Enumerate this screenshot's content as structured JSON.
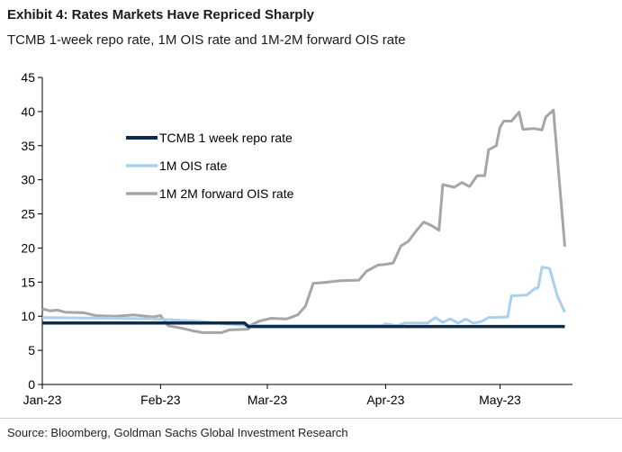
{
  "header": {
    "title": "Exhibit 4: Rates Markets Have Repriced Sharply",
    "subtitle": "TCMB 1-week repo rate, 1M OIS rate and 1M-2M forward OIS rate"
  },
  "footer": {
    "source": "Source: Bloomberg, Goldman Sachs Global Investment Research"
  },
  "chart_data": {
    "type": "line",
    "ylim": [
      0,
      45
    ],
    "yticks": [
      0,
      5,
      10,
      15,
      20,
      25,
      30,
      35,
      40,
      45
    ],
    "xlim": [
      "2023-01-01",
      "2023-05-20"
    ],
    "xticks": [
      {
        "date": "2023-01-01",
        "label": "Jan-23"
      },
      {
        "date": "2023-02-01",
        "label": "Feb-23"
      },
      {
        "date": "2023-03-01",
        "label": "Mar-23"
      },
      {
        "date": "2023-04-01",
        "label": "Apr-23"
      },
      {
        "date": "2023-05-01",
        "label": "May-23"
      }
    ],
    "grid": false,
    "legend_position": "top-left",
    "series": [
      {
        "name": "TCMB 1 week repo rate",
        "color": "#0d2b4a",
        "width": 3.5,
        "points": [
          [
            "2023-01-01",
            9.0
          ],
          [
            "2023-02-23",
            9.0
          ],
          [
            "2023-02-24",
            8.5
          ],
          [
            "2023-05-18",
            8.5
          ]
        ]
      },
      {
        "name": "1M OIS rate",
        "color": "#a9d0ec",
        "width": 3,
        "points": [
          [
            "2023-01-01",
            9.8
          ],
          [
            "2023-01-20",
            9.7
          ],
          [
            "2023-01-30",
            9.6
          ],
          [
            "2023-02-10",
            9.3
          ],
          [
            "2023-02-18",
            8.9
          ],
          [
            "2023-02-25",
            8.6
          ],
          [
            "2023-03-15",
            8.6
          ],
          [
            "2023-03-31",
            8.6
          ],
          [
            "2023-04-01",
            8.9
          ],
          [
            "2023-04-04",
            8.6
          ],
          [
            "2023-04-06",
            9.0
          ],
          [
            "2023-04-12",
            9.0
          ],
          [
            "2023-04-14",
            9.8
          ],
          [
            "2023-04-16",
            9.1
          ],
          [
            "2023-04-18",
            9.6
          ],
          [
            "2023-04-20",
            9.0
          ],
          [
            "2023-04-22",
            9.6
          ],
          [
            "2023-04-24",
            9.0
          ],
          [
            "2023-04-26",
            9.2
          ],
          [
            "2023-04-28",
            9.8
          ],
          [
            "2023-05-03",
            9.9
          ],
          [
            "2023-05-04",
            13.0
          ],
          [
            "2023-05-08",
            13.1
          ],
          [
            "2023-05-10",
            14.0
          ],
          [
            "2023-05-11",
            14.2
          ],
          [
            "2023-05-12",
            17.2
          ],
          [
            "2023-05-14",
            17.0
          ],
          [
            "2023-05-16",
            13.0
          ],
          [
            "2023-05-18",
            10.6
          ]
        ]
      },
      {
        "name": "1M 2M forward OIS rate",
        "color": "#a6a6a6",
        "width": 3,
        "points": [
          [
            "2023-01-01",
            11.1
          ],
          [
            "2023-01-03",
            10.8
          ],
          [
            "2023-01-05",
            10.9
          ],
          [
            "2023-01-07",
            10.6
          ],
          [
            "2023-01-12",
            10.5
          ],
          [
            "2023-01-15",
            10.1
          ],
          [
            "2023-01-20",
            10.0
          ],
          [
            "2023-01-25",
            10.2
          ],
          [
            "2023-01-30",
            9.9
          ],
          [
            "2023-02-01",
            10.1
          ],
          [
            "2023-02-03",
            8.6
          ],
          [
            "2023-02-07",
            8.2
          ],
          [
            "2023-02-10",
            7.8
          ],
          [
            "2023-02-12",
            7.6
          ],
          [
            "2023-02-17",
            7.6
          ],
          [
            "2023-02-19",
            8.0
          ],
          [
            "2023-02-24",
            8.1
          ],
          [
            "2023-02-25",
            8.8
          ],
          [
            "2023-02-27",
            9.3
          ],
          [
            "2023-03-02",
            9.7
          ],
          [
            "2023-03-06",
            9.6
          ],
          [
            "2023-03-09",
            10.2
          ],
          [
            "2023-03-11",
            11.5
          ],
          [
            "2023-03-13",
            14.8
          ],
          [
            "2023-03-17",
            15.0
          ],
          [
            "2023-03-20",
            15.2
          ],
          [
            "2023-03-25",
            15.3
          ],
          [
            "2023-03-27",
            16.6
          ],
          [
            "2023-03-30",
            17.5
          ],
          [
            "2023-04-01",
            17.6
          ],
          [
            "2023-04-03",
            17.8
          ],
          [
            "2023-04-05",
            20.3
          ],
          [
            "2023-04-07",
            21.0
          ],
          [
            "2023-04-09",
            22.5
          ],
          [
            "2023-04-11",
            23.8
          ],
          [
            "2023-04-13",
            23.3
          ],
          [
            "2023-04-15",
            22.6
          ],
          [
            "2023-04-16",
            29.3
          ],
          [
            "2023-04-19",
            28.9
          ],
          [
            "2023-04-21",
            29.6
          ],
          [
            "2023-04-23",
            29.0
          ],
          [
            "2023-04-25",
            30.6
          ],
          [
            "2023-04-27",
            30.6
          ],
          [
            "2023-04-28",
            34.4
          ],
          [
            "2023-04-30",
            35.0
          ],
          [
            "2023-05-01",
            37.7
          ],
          [
            "2023-05-02",
            38.6
          ],
          [
            "2023-05-04",
            38.6
          ],
          [
            "2023-05-06",
            39.9
          ],
          [
            "2023-05-07",
            37.4
          ],
          [
            "2023-05-10",
            37.5
          ],
          [
            "2023-05-12",
            37.3
          ],
          [
            "2023-05-13",
            39.2
          ],
          [
            "2023-05-15",
            40.2
          ],
          [
            "2023-05-18",
            20.2
          ]
        ]
      }
    ]
  }
}
